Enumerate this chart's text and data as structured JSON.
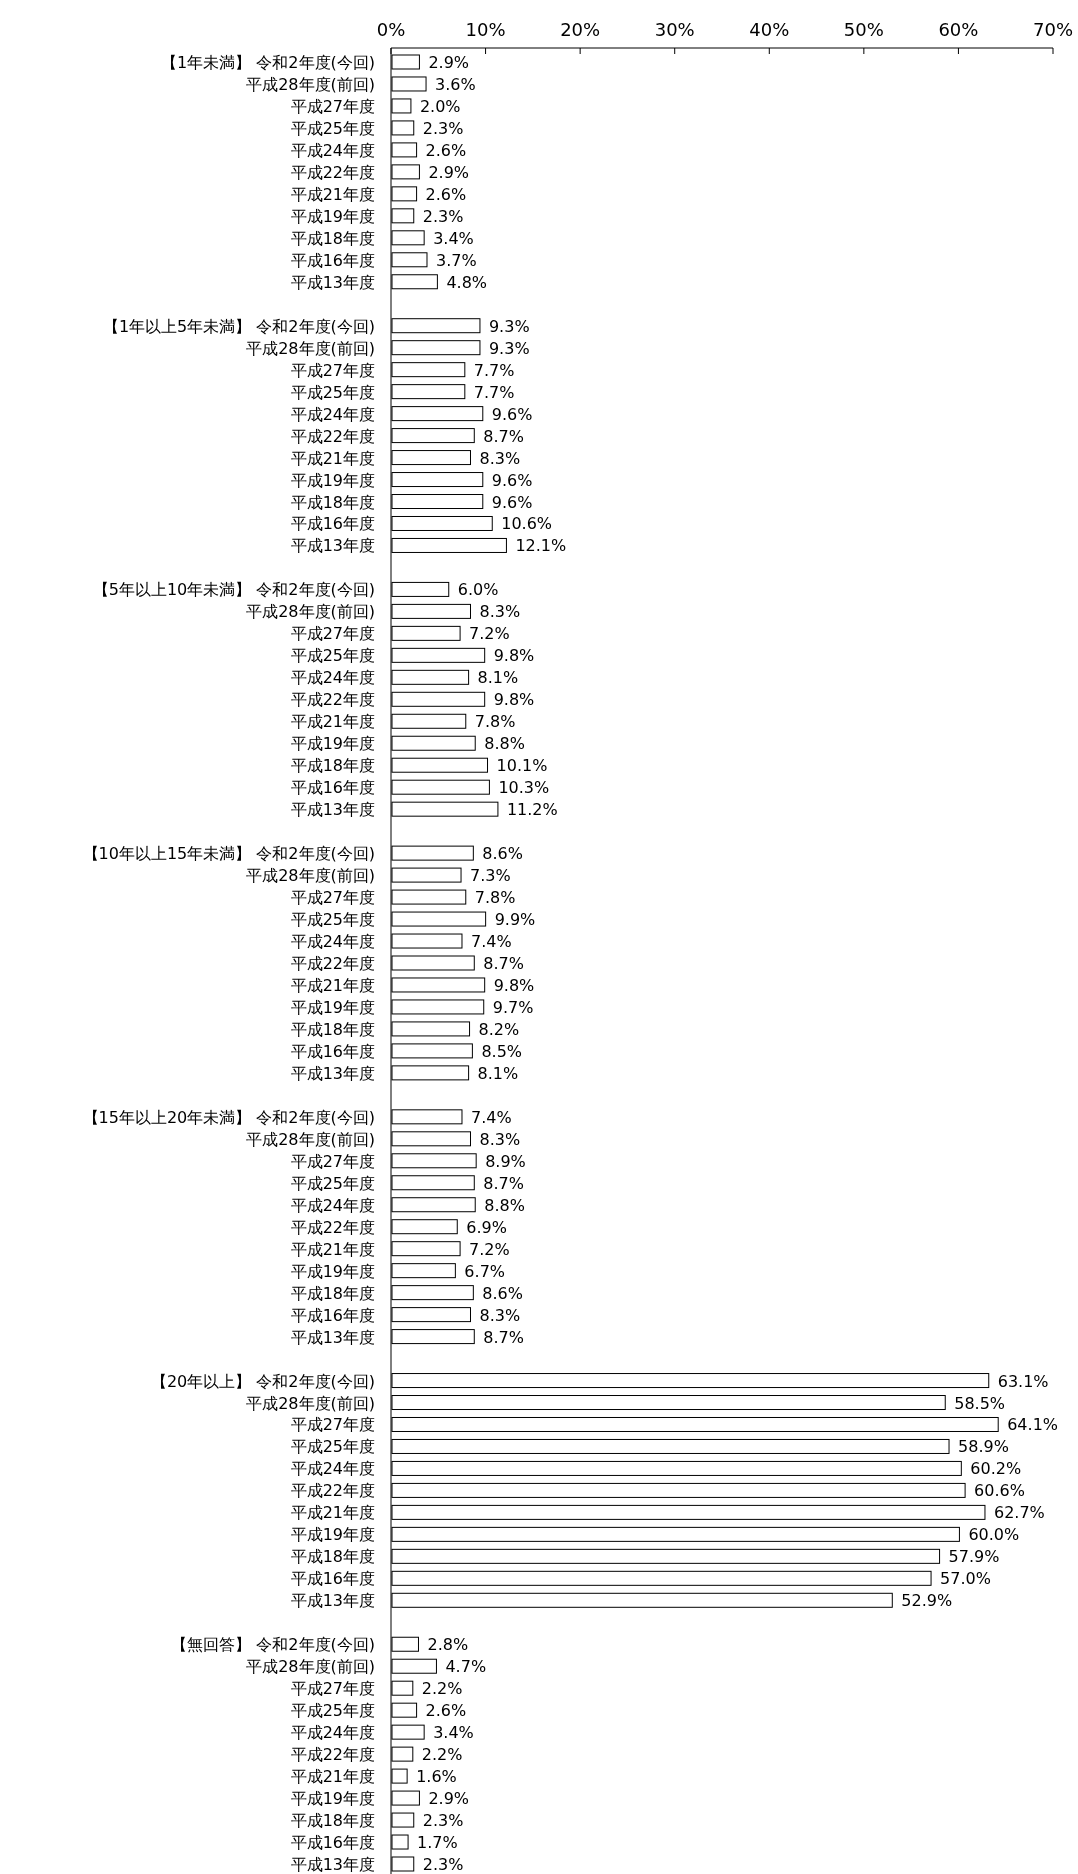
{
  "chart_data": {
    "type": "bar",
    "orientation": "horizontal",
    "categories": [
      "【1年未満】 令和2年度(今回)",
      "平成28年度(前回)",
      "平成27年度",
      "平成25年度",
      "平成24年度",
      "平成22年度",
      "平成21年度",
      "平成19年度",
      "平成18年度",
      "平成16年度",
      "平成13年度",
      null,
      "【1年以上5年未満】 令和2年度(今回)",
      "平成28年度(前回)",
      "平成27年度",
      "平成25年度",
      "平成24年度",
      "平成22年度",
      "平成21年度",
      "平成19年度",
      "平成18年度",
      "平成16年度",
      "平成13年度",
      null,
      "【5年以上10年未満】 令和2年度(今回)",
      "平成28年度(前回)",
      "平成27年度",
      "平成25年度",
      "平成24年度",
      "平成22年度",
      "平成21年度",
      "平成19年度",
      "平成18年度",
      "平成16年度",
      "平成13年度",
      null,
      "【10年以上15年未満】 令和2年度(今回)",
      "平成28年度(前回)",
      "平成27年度",
      "平成25年度",
      "平成24年度",
      "平成22年度",
      "平成21年度",
      "平成19年度",
      "平成18年度",
      "平成16年度",
      "平成13年度",
      null,
      "【15年以上20年未満】 令和2年度(今回)",
      "平成28年度(前回)",
      "平成27年度",
      "平成25年度",
      "平成24年度",
      "平成22年度",
      "平成21年度",
      "平成19年度",
      "平成18年度",
      "平成16年度",
      "平成13年度",
      null,
      "【20年以上】 令和2年度(今回)",
      "平成28年度(前回)",
      "平成27年度",
      "平成25年度",
      "平成24年度",
      "平成22年度",
      "平成21年度",
      "平成19年度",
      "平成18年度",
      "平成16年度",
      "平成13年度",
      null,
      "【無回答】 令和2年度(今回)",
      "平成28年度(前回)",
      "平成27年度",
      "平成25年度",
      "平成24年度",
      "平成22年度",
      "平成21年度",
      "平成19年度",
      "平成18年度",
      "平成16年度",
      "平成13年度"
    ],
    "values": [
      2.9,
      3.6,
      2.0,
      2.3,
      2.6,
      2.9,
      2.6,
      2.3,
      3.4,
      3.7,
      4.8,
      null,
      9.3,
      9.3,
      7.7,
      7.7,
      9.6,
      8.7,
      8.3,
      9.6,
      9.6,
      10.6,
      12.1,
      null,
      6.0,
      8.3,
      7.2,
      9.8,
      8.1,
      9.8,
      7.8,
      8.8,
      10.1,
      10.3,
      11.2,
      null,
      8.6,
      7.3,
      7.8,
      9.9,
      7.4,
      8.7,
      9.8,
      9.7,
      8.2,
      8.5,
      8.1,
      null,
      7.4,
      8.3,
      8.9,
      8.7,
      8.8,
      6.9,
      7.2,
      6.7,
      8.6,
      8.3,
      8.7,
      null,
      63.1,
      58.5,
      64.1,
      58.9,
      60.2,
      60.6,
      62.7,
      60.0,
      57.9,
      57.0,
      52.9,
      null,
      2.8,
      4.7,
      2.2,
      2.6,
      3.4,
      2.2,
      1.6,
      2.9,
      2.3,
      1.7,
      2.3
    ],
    "value_labels": [
      "2.9%",
      "3.6%",
      "2.0%",
      "2.3%",
      "2.6%",
      "2.9%",
      "2.6%",
      "2.3%",
      "3.4%",
      "3.7%",
      "4.8%",
      null,
      "9.3%",
      "9.3%",
      "7.7%",
      "7.7%",
      "9.6%",
      "8.7%",
      "8.3%",
      "9.6%",
      "9.6%",
      "10.6%",
      "12.1%",
      null,
      "6.0%",
      "8.3%",
      "7.2%",
      "9.8%",
      "8.1%",
      "9.8%",
      "7.8%",
      "8.8%",
      "10.1%",
      "10.3%",
      "11.2%",
      null,
      "8.6%",
      "7.3%",
      "7.8%",
      "9.9%",
      "7.4%",
      "8.7%",
      "9.8%",
      "9.7%",
      "8.2%",
      "8.5%",
      "8.1%",
      null,
      "7.4%",
      "8.3%",
      "8.9%",
      "8.7%",
      "8.8%",
      "6.9%",
      "7.2%",
      "6.7%",
      "8.6%",
      "8.3%",
      "8.7%",
      null,
      "63.1%",
      "58.5%",
      "64.1%",
      "58.9%",
      "60.2%",
      "60.6%",
      "62.7%",
      "60.0%",
      "57.9%",
      "57.0%",
      "52.9%",
      null,
      "2.8%",
      "4.7%",
      "2.2%",
      "2.6%",
      "3.4%",
      "2.2%",
      "1.6%",
      "2.9%",
      "2.3%",
      "1.7%",
      "2.3%"
    ],
    "color": "#ffffff",
    "xlim": [
      0,
      70
    ],
    "xticks": [
      {
        "value": 0,
        "label": "0%"
      },
      {
        "value": 10,
        "label": "10%"
      },
      {
        "value": 20,
        "label": "20%"
      },
      {
        "value": 30,
        "label": "30%"
      },
      {
        "value": 40,
        "label": "40%"
      },
      {
        "value": 50,
        "label": "50%"
      },
      {
        "value": 60,
        "label": "60%"
      },
      {
        "value": 70,
        "label": "70%"
      }
    ],
    "grid": false
  }
}
